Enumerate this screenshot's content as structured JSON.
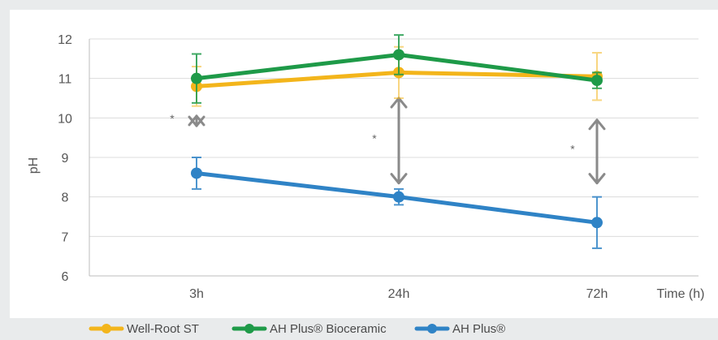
{
  "chart_data": {
    "type": "line",
    "xlabel": "Time (h)",
    "ylabel": "pH",
    "categories": [
      "3h",
      "24h",
      "72h"
    ],
    "ylim": [
      6,
      12
    ],
    "yticks": [
      6,
      7,
      8,
      9,
      10,
      11,
      12
    ],
    "grid": "horizontal",
    "legend_position": "bottom-left",
    "series": [
      {
        "name": "Well-Root ST",
        "color": "#f3b51b",
        "values": [
          10.8,
          11.15,
          11.05
        ],
        "error": [
          0.5,
          0.65,
          0.6
        ]
      },
      {
        "name": "AH Plus® Bioceramic",
        "color": "#1e9a48",
        "values": [
          11.0,
          11.6,
          10.95
        ],
        "error": [
          0.62,
          0.5,
          0.2
        ]
      },
      {
        "name": "AH Plus®",
        "color": "#2f83c6",
        "values": [
          8.6,
          8.0,
          7.35
        ],
        "error": [
          0.4,
          0.2,
          0.65
        ]
      }
    ],
    "annotations": [
      {
        "text": "*",
        "category": "3h",
        "from": 9.8,
        "to": 10.05
      },
      {
        "text": "*",
        "category": "24h",
        "from": 8.35,
        "to": 10.5
      },
      {
        "text": "*",
        "category": "72h",
        "from": 8.35,
        "to": 9.95
      }
    ]
  }
}
